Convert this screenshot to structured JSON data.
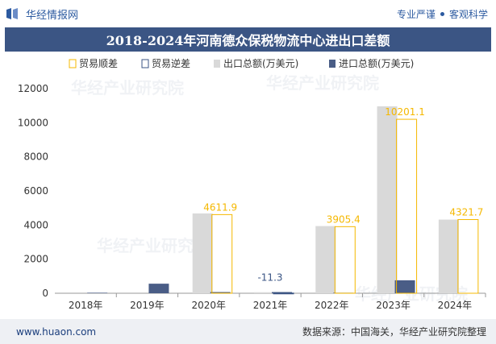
{
  "header": {
    "site_name": "华经情报网",
    "tagline_left": "专业严谨",
    "tagline_right": "客观科学"
  },
  "colors": {
    "title_bg": "#3b5584",
    "export_bar": "#d9d9d9",
    "import_bar": "#4a5d86",
    "surplus_outline": "#f5b800",
    "deficit_outline": "#3b5584"
  },
  "chart_data": {
    "type": "bar",
    "title": "2018-2024年河南德众保税物流中心进出口差额",
    "categories": [
      "2018年",
      "2019年",
      "2020年",
      "2021年",
      "2022年",
      "2023年",
      "2024年"
    ],
    "series": [
      {
        "name": "出口总额(万美元)",
        "values": [
          0,
          0,
          4680,
          60,
          3940,
          10960,
          4320
        ]
      },
      {
        "name": "进口总额(万美元)",
        "values": [
          30,
          560,
          70,
          70,
          30,
          760,
          0
        ]
      },
      {
        "name": "贸易顺差",
        "values": [
          null,
          null,
          4611.9,
          null,
          3905.4,
          10201.1,
          4321.7
        ]
      },
      {
        "name": "贸易逆差",
        "values": [
          null,
          null,
          null,
          -11.3,
          null,
          null,
          null
        ]
      }
    ],
    "data_labels": [
      "",
      "",
      "4611.9",
      "-11.3",
      "3905.4",
      "10201.1",
      "4321.7"
    ],
    "ylim": [
      0,
      12000
    ],
    "yticks": [
      0,
      2000,
      4000,
      6000,
      8000,
      10000,
      12000
    ],
    "legend_position": "top",
    "grid": false
  },
  "footer": {
    "website": "www.huaon.com",
    "source": "数据来源：中国海关，华经产业研究院整理"
  }
}
